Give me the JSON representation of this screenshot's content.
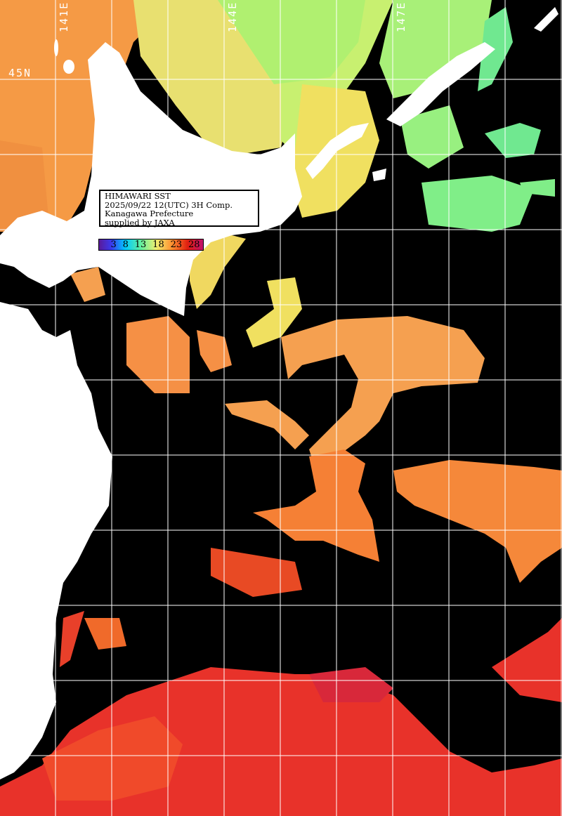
{
  "title_box": {
    "line1": "HIMAWARI SST",
    "line2": "2025/09/22 12(UTC) 3H Comp.",
    "line3": "Kanagawa Prefecture",
    "line4": "supplied by JAXA"
  },
  "colorbar": {
    "ticks": [
      "3",
      "8",
      "13",
      "18",
      "23",
      "28"
    ],
    "unit_colors": [
      "#5a1a9a",
      "#3a3af0",
      "#00c8ff",
      "#60f0a0",
      "#f0f070",
      "#ff9030",
      "#e02010",
      "#c0106a"
    ]
  },
  "grid_labels": {
    "lat": [
      "45N"
    ],
    "lon": [
      "141E",
      "144E",
      "147E"
    ]
  },
  "colors": {
    "land": "#ffffff",
    "no_data": "#000000",
    "grid": "#ffffff"
  }
}
